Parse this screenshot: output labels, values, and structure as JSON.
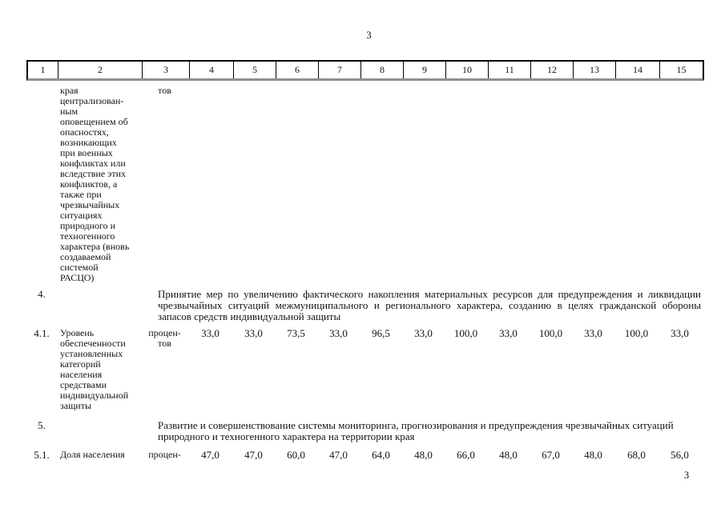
{
  "page": {
    "top_page_number": "3",
    "bottom_page_number": "3"
  },
  "header": {
    "columns": [
      "1",
      "2",
      "3",
      "4",
      "5",
      "6",
      "7",
      "8",
      "9",
      "10",
      "11",
      "12",
      "13",
      "14",
      "15"
    ]
  },
  "rows": {
    "continuation": {
      "name_lines": "края\nцентрализован-\nным\nоповещением об\nопасностях,\nвозникающих\nпри военных\nконфликтах или\nвследствие этих\nконфликтов, а\nтакже при\nчрезвычайных\nситуациях\nприродного и\nтехногенного\nхарактера (вновь\nсоздаваемой\nсистемой\nРАСЦО)",
      "unit": "тов"
    },
    "row4": {
      "num": "4.",
      "text": "Принятие мер по увеличению фактического накопления материальных ресурсов для предупреждения и ликвидации чрезвычайных ситуаций межмуниципального и регионального характера, созданию в целях гражданской обороны запасов средств индивидуальной защиты"
    },
    "row41": {
      "num": "4.1.",
      "name": "Уровень\nобеспеченности\nустановленных\nкатегорий\nнаселения\nсредствами\nиндивидуальной\nзащиты",
      "unit": "процен-\nтов",
      "values": [
        "33,0",
        "33,0",
        "73,5",
        "33,0",
        "96,5",
        "33,0",
        "100,0",
        "33,0",
        "100,0",
        "33,0",
        "100,0",
        "33,0"
      ]
    },
    "row5": {
      "num": "5.",
      "text": "Развитие и совершенствование системы мониторинга, прогнозирования и предупреждения чрезвычайных ситуаций природного и техногенного характера на территории края"
    },
    "row51": {
      "num": "5.1.",
      "name": "Доля населения",
      "unit": "процен-",
      "values": [
        "47,0",
        "47,0",
        "60,0",
        "47,0",
        "64,0",
        "48,0",
        "66,0",
        "48,0",
        "67,0",
        "48,0",
        "68,0",
        "56,0"
      ]
    }
  }
}
